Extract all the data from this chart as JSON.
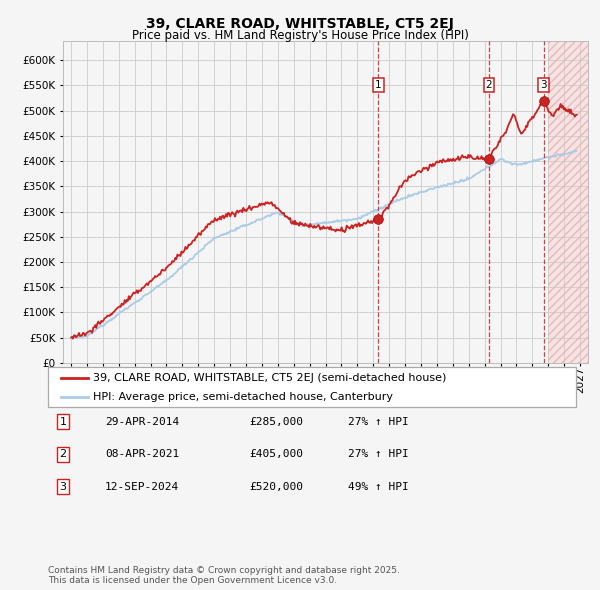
{
  "title": "39, CLARE ROAD, WHITSTABLE, CT5 2EJ",
  "subtitle": "Price paid vs. HM Land Registry's House Price Index (HPI)",
  "ylim": [
    0,
    637500
  ],
  "yticks": [
    0,
    50000,
    100000,
    150000,
    200000,
    250000,
    300000,
    350000,
    400000,
    450000,
    500000,
    550000,
    600000
  ],
  "xlim_start": 1994.5,
  "xlim_end": 2027.5,
  "background_color": "#f5f5f5",
  "plot_bg_color": "#f5f5f5",
  "grid_color": "#cccccc",
  "hpi_color": "#aacce8",
  "price_color": "#cc2222",
  "future_start": 2025.0,
  "sale_points": [
    {
      "date_num": 2014.32,
      "price": 285000,
      "label": "1"
    },
    {
      "date_num": 2021.27,
      "price": 405000,
      "label": "2"
    },
    {
      "date_num": 2024.71,
      "price": 520000,
      "label": "3"
    }
  ],
  "legend_entries": [
    {
      "label": "39, CLARE ROAD, WHITSTABLE, CT5 2EJ (semi-detached house)",
      "color": "#cc2222"
    },
    {
      "label": "HPI: Average price, semi-detached house, Canterbury",
      "color": "#aacce8"
    }
  ],
  "table_rows": [
    {
      "num": "1",
      "date": "29-APR-2014",
      "price": "£285,000",
      "hpi": "27% ↑ HPI"
    },
    {
      "num": "2",
      "date": "08-APR-2021",
      "price": "£405,000",
      "hpi": "27% ↑ HPI"
    },
    {
      "num": "3",
      "date": "12-SEP-2024",
      "price": "£520,000",
      "hpi": "49% ↑ HPI"
    }
  ],
  "footer": "Contains HM Land Registry data © Crown copyright and database right 2025.\nThis data is licensed under the Open Government Licence v3.0.",
  "title_fontsize": 10,
  "subtitle_fontsize": 8.5,
  "tick_fontsize": 7.5,
  "legend_fontsize": 8,
  "table_fontsize": 8,
  "footer_fontsize": 6.5
}
